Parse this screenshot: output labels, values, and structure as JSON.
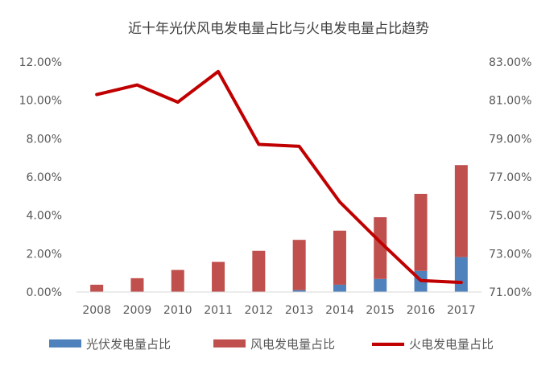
{
  "chart_data": {
    "type": "bar",
    "title": "近十年光伏风电发电量占比与火电发电量占比趋势",
    "categories": [
      "2008",
      "2009",
      "2010",
      "2011",
      "2012",
      "2013",
      "2014",
      "2015",
      "2016",
      "2017"
    ],
    "series": [
      {
        "name": "光伏发电量占比",
        "type": "bar-stacked",
        "axis": "left",
        "values": [
          0.0,
          0.0,
          0.0,
          0.01,
          0.02,
          0.1,
          0.38,
          0.68,
          1.1,
          1.82
        ]
      },
      {
        "name": "风电发电量占比",
        "type": "bar-stacked",
        "axis": "left",
        "values": [
          0.38,
          0.72,
          1.15,
          1.56,
          2.13,
          2.62,
          2.82,
          3.22,
          4.02,
          4.8
        ]
      },
      {
        "name": "火电发电量占比",
        "type": "line",
        "axis": "right",
        "values": [
          81.3,
          81.8,
          80.9,
          82.5,
          78.7,
          78.6,
          75.7,
          73.6,
          71.6,
          71.5
        ]
      }
    ],
    "y_left": {
      "min": 0,
      "max": 12,
      "ticks": [
        "0.00%",
        "2.00%",
        "4.00%",
        "6.00%",
        "8.00%",
        "10.00%",
        "12.00%"
      ]
    },
    "y_right": {
      "min": 71,
      "max": 83,
      "ticks": [
        "71.00%",
        "73.00%",
        "75.00%",
        "77.00%",
        "79.00%",
        "81.00%",
        "83.00%"
      ]
    },
    "legend_position": "bottom",
    "colors": {
      "solar": "#4F81BD",
      "wind": "#C0504D",
      "thermal": "#C00000"
    }
  }
}
